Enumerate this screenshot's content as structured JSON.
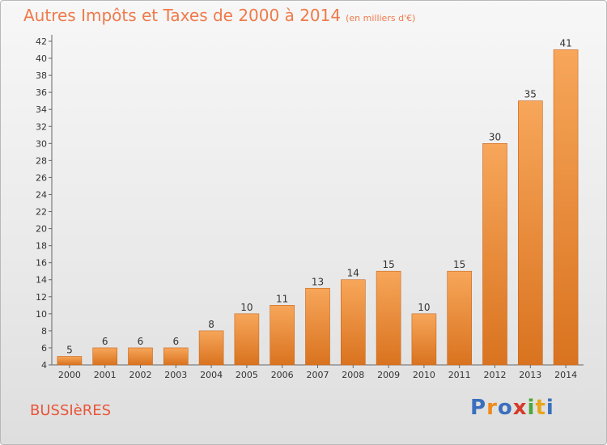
{
  "title": "Autres Impôts et Taxes de 2000 à 2014",
  "subtitle": "(en milliers d'€)",
  "commune": "BUSSIèRES",
  "brand": {
    "letters": [
      {
        "char": "P",
        "color": "#3a6fbd"
      },
      {
        "char": "r",
        "color": "#f08a1c"
      },
      {
        "char": "o",
        "color": "#3a6fbd"
      },
      {
        "char": "x",
        "color": "#d63a2a"
      },
      {
        "char": "i",
        "color": "#4aa83a"
      },
      {
        "char": "t",
        "color": "#e8a51c"
      },
      {
        "char": "i",
        "color": "#3a6fbd"
      }
    ]
  },
  "colors": {
    "title": "#ef7a4a",
    "bar_light": "#f7a65a",
    "bar_dark": "#d9731f",
    "axis": "#666666",
    "grid": "#cfcfcf"
  },
  "chart_data": {
    "type": "bar",
    "categories": [
      "2000",
      "2001",
      "2002",
      "2003",
      "2004",
      "2005",
      "2006",
      "2007",
      "2008",
      "2009",
      "2010",
      "2011",
      "2012",
      "2013",
      "2014"
    ],
    "values": [
      5,
      6,
      6,
      6,
      8,
      10,
      11,
      13,
      14,
      15,
      10,
      15,
      30,
      35,
      41
    ],
    "data_labels": [
      "5",
      "6",
      "6",
      "6",
      "8",
      "10",
      "11",
      "13",
      "14",
      "15",
      "10",
      "15",
      "30",
      "35",
      "41"
    ],
    "yticks": [
      4,
      6,
      8,
      10,
      12,
      14,
      16,
      18,
      20,
      22,
      24,
      26,
      28,
      30,
      32,
      34,
      36,
      38,
      40,
      42
    ],
    "ylim": [
      4,
      42
    ],
    "grid": false
  }
}
